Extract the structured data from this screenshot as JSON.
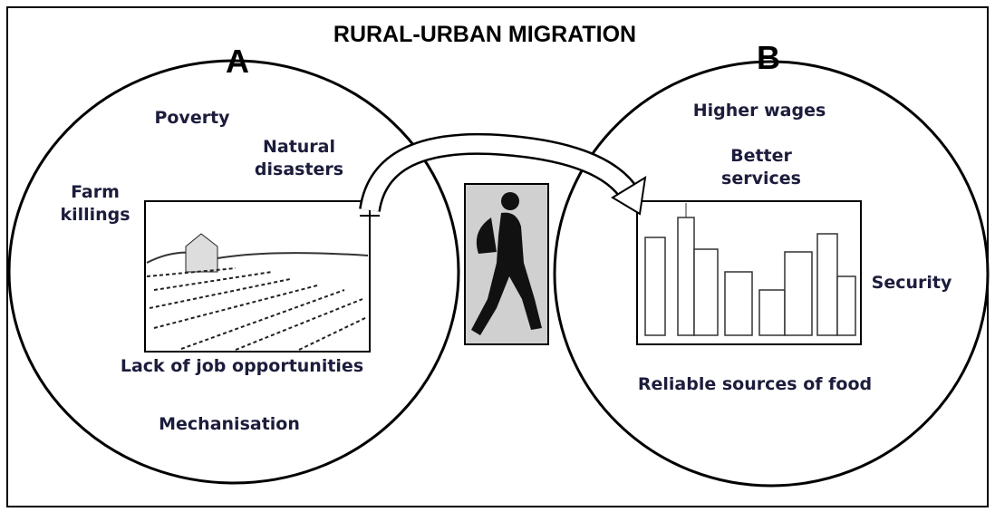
{
  "title": "RURAL-URBAN MIGRATION",
  "circles": [
    {
      "label": "A",
      "factors": [
        {
          "lines": [
            "Poverty"
          ]
        },
        {
          "lines": [
            "Natural",
            "disasters"
          ]
        },
        {
          "lines": [
            "Farm",
            "killings"
          ]
        },
        {
          "lines": [
            "Lack of job opportunities"
          ]
        },
        {
          "lines": [
            "Mechanisation"
          ]
        }
      ]
    },
    {
      "label": "B",
      "factors": [
        {
          "lines": [
            "Higher wages"
          ]
        },
        {
          "lines": [
            "Better",
            "services"
          ]
        },
        {
          "lines": [
            "Security"
          ]
        },
        {
          "lines": [
            "Reliable sources of food"
          ]
        }
      ]
    }
  ]
}
